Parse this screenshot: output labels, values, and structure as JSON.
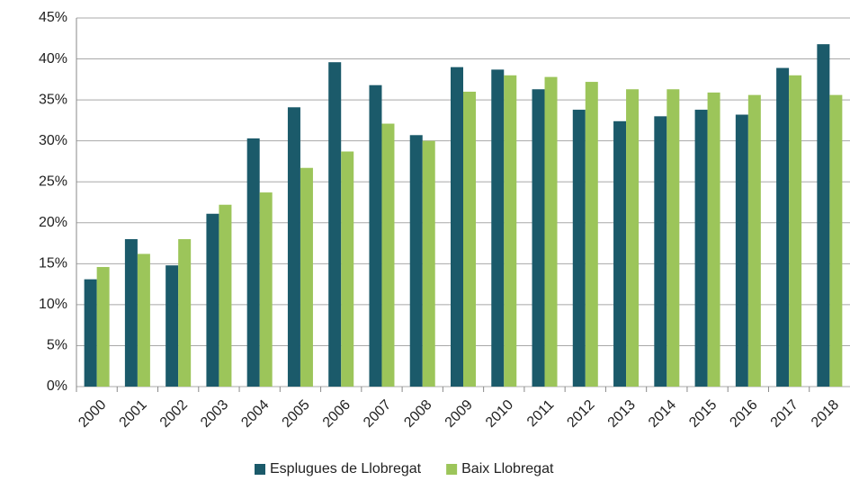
{
  "chart_data": {
    "type": "bar",
    "categories": [
      "2000",
      "2001",
      "2002",
      "2003",
      "2004",
      "2005",
      "2006",
      "2007",
      "2008",
      "2009",
      "2010",
      "2011",
      "2012",
      "2013",
      "2014",
      "2015",
      "2016",
      "2017",
      "2018"
    ],
    "series": [
      {
        "name": "Esplugues de Llobregat",
        "color": "#1b5a6a",
        "values": [
          13.1,
          18.0,
          14.8,
          21.1,
          30.3,
          34.1,
          39.6,
          36.8,
          30.7,
          39.0,
          38.7,
          36.3,
          33.8,
          32.4,
          33.0,
          33.8,
          33.2,
          38.9,
          41.8
        ]
      },
      {
        "name": "Baix Llobregat",
        "color": "#9cc55a",
        "values": [
          14.6,
          16.2,
          18.0,
          22.2,
          23.7,
          26.7,
          28.7,
          32.1,
          30.0,
          36.0,
          38.0,
          37.8,
          37.2,
          36.3,
          36.3,
          35.9,
          35.6,
          38.0,
          35.6
        ]
      }
    ],
    "ylim": [
      0,
      45
    ],
    "yticks": [
      {
        "value": 0,
        "label": "0%"
      },
      {
        "value": 5,
        "label": "5%"
      },
      {
        "value": 10,
        "label": "10%"
      },
      {
        "value": 15,
        "label": "15%"
      },
      {
        "value": 20,
        "label": "20%"
      },
      {
        "value": 25,
        "label": "25%"
      },
      {
        "value": 30,
        "label": "30%"
      },
      {
        "value": 35,
        "label": "35%"
      },
      {
        "value": 40,
        "label": "40%"
      },
      {
        "value": 45,
        "label": "45%"
      }
    ],
    "grid": true,
    "legend": "bottom"
  }
}
